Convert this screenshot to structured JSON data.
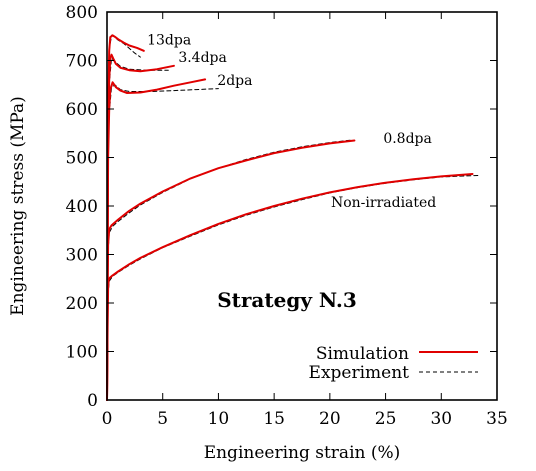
{
  "chart_data": {
    "type": "line",
    "title": "",
    "xlabel": "Engineering strain (%)",
    "ylabel": "Engineering stress (MPa)",
    "xlim": [
      0,
      35
    ],
    "ylim": [
      0,
      800
    ],
    "xticks": [
      0,
      5,
      10,
      15,
      20,
      25,
      30,
      35
    ],
    "yticks": [
      0,
      100,
      200,
      300,
      400,
      500,
      600,
      700,
      800
    ],
    "grid": false,
    "inner_label": "Strategy N.3",
    "legend": {
      "position": "bottom-right",
      "entries": [
        {
          "label": "Simulation",
          "style": "solid",
          "color": "#e00000"
        },
        {
          "label": "Experiment",
          "style": "dashed",
          "color": "#000000"
        }
      ]
    },
    "annotations": [
      {
        "text": "13dpa",
        "x": 3.6,
        "y": 733
      },
      {
        "text": "3.4dpa",
        "x": 6.4,
        "y": 697
      },
      {
        "text": "2dpa",
        "x": 9.9,
        "y": 650
      },
      {
        "text": "0.8dpa",
        "x": 24.8,
        "y": 530
      },
      {
        "text": "Non-irradiated",
        "x": 20.1,
        "y": 398
      }
    ],
    "series": [
      {
        "name": "Non-irradiated",
        "kind": "simulation",
        "x": [
          0,
          0.05,
          0.1,
          0.15,
          0.25,
          0.5,
          1,
          2,
          3,
          5,
          7.5,
          10,
          12.5,
          15,
          17.5,
          20,
          22.5,
          25,
          27.5,
          30,
          32.8
        ],
        "y": [
          0,
          150,
          230,
          247,
          252,
          257,
          265,
          280,
          293,
          315,
          340,
          363,
          383,
          400,
          415,
          428,
          439,
          448,
          455,
          461,
          466
        ]
      },
      {
        "name": "Non-irradiated",
        "kind": "experiment",
        "x": [
          0,
          0.05,
          0.1,
          0.2,
          0.5,
          1,
          2,
          3,
          5,
          7.5,
          10,
          12.5,
          15,
          17.5,
          20,
          22.5,
          25,
          27.5,
          30,
          33.5
        ],
        "y": [
          0,
          140,
          220,
          245,
          255,
          263,
          278,
          291,
          314,
          338,
          361,
          381,
          398,
          413,
          427,
          438,
          447,
          454,
          460,
          463
        ]
      },
      {
        "name": "0.8dpa",
        "kind": "simulation",
        "x": [
          0,
          0.05,
          0.1,
          0.2,
          0.4,
          1,
          2,
          3,
          5,
          7.5,
          10,
          12.5,
          15,
          17.5,
          20,
          22.2
        ],
        "y": [
          0,
          200,
          320,
          352,
          360,
          372,
          390,
          405,
          430,
          457,
          478,
          494,
          509,
          520,
          529,
          535
        ]
      },
      {
        "name": "0.8dpa",
        "kind": "experiment",
        "x": [
          0,
          0.05,
          0.1,
          0.2,
          0.5,
          1,
          2,
          3,
          5,
          7.5,
          10,
          12.5,
          15,
          17.5,
          20,
          22
        ],
        "y": [
          0,
          190,
          305,
          345,
          358,
          368,
          386,
          402,
          428,
          456,
          478,
          496,
          511,
          522,
          531,
          536
        ]
      },
      {
        "name": "2dpa",
        "kind": "simulation",
        "x": [
          0,
          0.05,
          0.1,
          0.2,
          0.3,
          0.5,
          0.8,
          1.2,
          1.8,
          3,
          4.5,
          6,
          7.5,
          8.8
        ],
        "y": [
          0,
          300,
          500,
          600,
          640,
          655,
          645,
          638,
          633,
          634,
          640,
          648,
          655,
          661
        ]
      },
      {
        "name": "2dpa",
        "kind": "experiment",
        "x": [
          0,
          0.05,
          0.1,
          0.2,
          0.4,
          0.7,
          1.2,
          2,
          4,
          6,
          8,
          10
        ],
        "y": [
          0,
          290,
          490,
          590,
          645,
          650,
          640,
          636,
          636,
          638,
          640,
          642
        ]
      },
      {
        "name": "3.4dpa",
        "kind": "simulation",
        "x": [
          0,
          0.05,
          0.1,
          0.2,
          0.3,
          0.4,
          0.6,
          0.8,
          1.2,
          2,
          3,
          4.5,
          6
        ],
        "y": [
          0,
          300,
          540,
          660,
          705,
          712,
          702,
          693,
          685,
          680,
          678,
          682,
          689
        ]
      },
      {
        "name": "3.4dpa",
        "kind": "experiment",
        "x": [
          0,
          0.05,
          0.1,
          0.2,
          0.4,
          0.7,
          1.2,
          2,
          3.5,
          5.5
        ],
        "y": [
          0,
          290,
          530,
          650,
          705,
          698,
          688,
          682,
          680,
          680
        ]
      },
      {
        "name": "13dpa",
        "kind": "simulation",
        "x": [
          0,
          0.05,
          0.1,
          0.2,
          0.3,
          0.5,
          0.7,
          1,
          1.5,
          2,
          2.7,
          3.3
        ],
        "y": [
          0,
          320,
          600,
          720,
          748,
          752,
          749,
          744,
          737,
          731,
          726,
          720
        ]
      },
      {
        "name": "13dpa",
        "kind": "experiment",
        "x": [
          0,
          0.05,
          0.1,
          0.2,
          0.4,
          0.7,
          1,
          1.5,
          2,
          2.5,
          3
        ],
        "y": [
          0,
          310,
          590,
          720,
          752,
          748,
          742,
          735,
          725,
          715,
          707
        ]
      }
    ]
  }
}
